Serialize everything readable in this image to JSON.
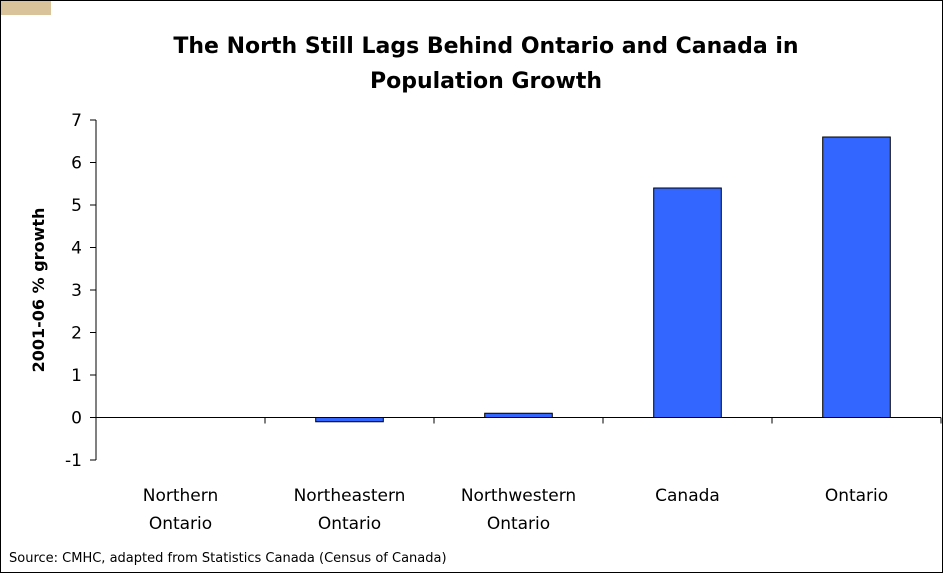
{
  "chart_data": {
    "type": "bar",
    "title_lines": [
      "The North Still Lags Behind Ontario and Canada in",
      "Population Growth"
    ],
    "ylabel": "2001-06 % growth",
    "xlabel": "",
    "categories": [
      [
        "Northern",
        "Ontario"
      ],
      [
        "Northeastern",
        "Ontario"
      ],
      [
        "Northwestern",
        "Ontario"
      ],
      [
        "Canada"
      ],
      [
        "Ontario"
      ]
    ],
    "values": [
      0.0,
      -0.1,
      0.1,
      5.4,
      6.6
    ],
    "ylim": [
      -1,
      7
    ],
    "yticks": [
      "-1",
      "0",
      "1",
      "2",
      "3",
      "4",
      "5",
      "6",
      "7"
    ],
    "grid": false,
    "bar_color": "#3366ff",
    "source": "Source: CMHC, adapted from Statistics Canada (Census of Canada)"
  }
}
